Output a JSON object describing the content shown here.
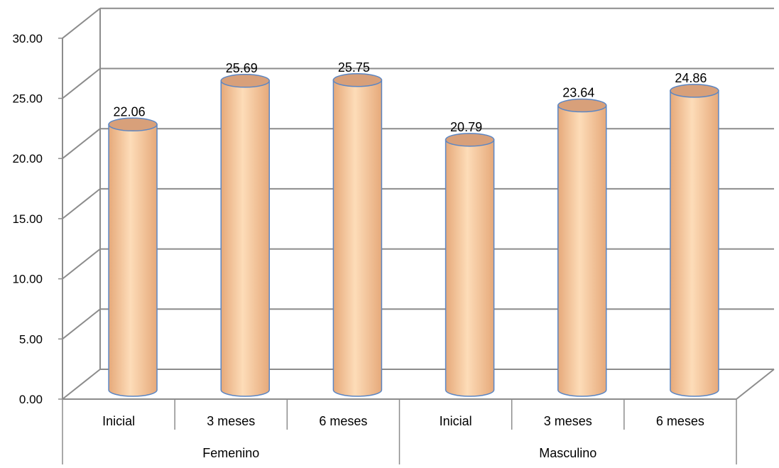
{
  "chart_data": {
    "type": "bar",
    "style": "3d-cylinder",
    "groups": [
      {
        "name": "Femenino",
        "categories": [
          "Inicial",
          "3 meses",
          "6 meses"
        ],
        "values": [
          22.06,
          25.69,
          25.75
        ]
      },
      {
        "name": "Masculino",
        "categories": [
          "Inicial",
          "3 meses",
          "6 meses"
        ],
        "values": [
          20.79,
          23.64,
          24.86
        ]
      }
    ],
    "ylim": [
      0,
      30
    ],
    "yticks": [
      "0.00",
      "5.00",
      "10.00",
      "15.00",
      "20.00",
      "25.00",
      "30.00"
    ],
    "data_labels": [
      "22.06",
      "25.69",
      "25.75",
      "20.79",
      "23.64",
      "24.86"
    ],
    "grid": true,
    "title": "",
    "xlabel": "",
    "ylabel": ""
  },
  "colors": {
    "bar_fill_light": "#fddcb8",
    "bar_fill_dark": "#e6a97a",
    "bar_top": "#d8a07a",
    "bar_outline": "#5b86c4",
    "grid": "#8c8c8c"
  }
}
